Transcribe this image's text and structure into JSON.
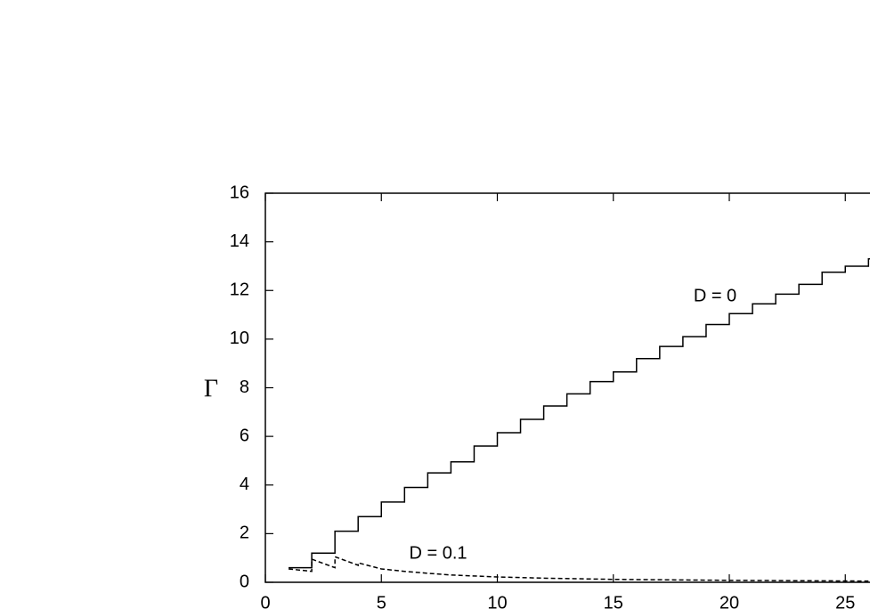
{
  "chart_data": {
    "type": "line",
    "y_label": "Γ",
    "xlim": [
      0,
      30
    ],
    "ylim": [
      0,
      16
    ],
    "xticks": [
      0,
      5,
      10,
      15,
      20,
      25
    ],
    "yticks": [
      0,
      2,
      4,
      6,
      8,
      10,
      12,
      14,
      16
    ],
    "series": [
      {
        "name": "D = 0",
        "color": "#000000",
        "style": "solid",
        "step": true,
        "x": [
          1,
          2,
          3,
          4,
          5,
          6,
          7,
          8,
          9,
          10,
          11,
          12,
          13,
          14,
          15,
          16,
          17,
          18,
          19,
          20,
          21,
          22,
          23,
          24,
          25,
          26
        ],
        "values": [
          0.6,
          1.2,
          2.1,
          2.7,
          3.3,
          3.9,
          4.5,
          4.95,
          5.6,
          6.15,
          6.7,
          7.25,
          7.75,
          8.25,
          8.65,
          9.2,
          9.7,
          10.1,
          10.6,
          11.05,
          11.45,
          11.85,
          12.25,
          12.75,
          13.0,
          13.3
        ]
      },
      {
        "name": "D = 0.1",
        "color": "#000000",
        "style": "dashed",
        "step": false,
        "x": [
          1,
          2,
          2,
          3,
          3,
          4,
          4,
          5,
          6,
          7,
          8,
          10,
          12,
          15,
          20,
          26
        ],
        "values": [
          0.55,
          0.45,
          0.95,
          0.6,
          1.05,
          0.7,
          0.8,
          0.55,
          0.45,
          0.37,
          0.3,
          0.22,
          0.17,
          0.12,
          0.08,
          0.05
        ]
      }
    ]
  }
}
